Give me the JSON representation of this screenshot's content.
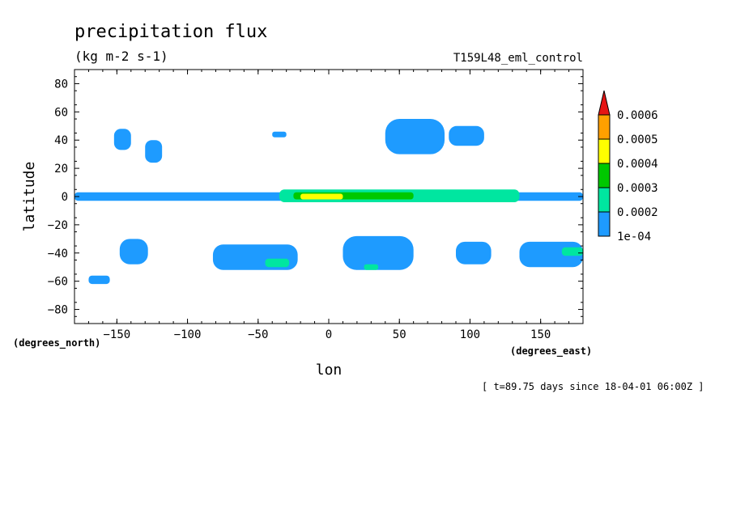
{
  "chart_data": {
    "type": "heatmap",
    "title": "precipitation flux",
    "subtitle": "(kg m-2 s-1)",
    "run_label": "T159L48_eml_control",
    "xlabel": "lon",
    "ylabel": "latitude",
    "x_units": "(degrees_east)",
    "y_units": "(degrees_north)",
    "time_note": "[ t=89.75 days since 18-04-01 06:00Z ]",
    "xlim": [
      -180,
      180
    ],
    "ylim": [
      -90,
      90
    ],
    "x_ticks": [
      -150,
      -100,
      -50,
      0,
      50,
      100,
      150
    ],
    "y_ticks": [
      80,
      60,
      40,
      20,
      0,
      -20,
      -40,
      -60,
      -80
    ],
    "grid": false,
    "colorbar": {
      "levels": [
        "1e-04",
        "0.0002",
        "0.0003",
        "0.0004",
        "0.0005",
        "0.0006"
      ],
      "colors": [
        "#1e9bff",
        "#00e6a0",
        "#00c800",
        "#ffff00",
        "#ffa000",
        "#e61414"
      ]
    },
    "fields": [
      {
        "lon": [
          -180,
          180
        ],
        "lat": [
          -3,
          3
        ],
        "level": 1
      },
      {
        "lon": [
          -35,
          135
        ],
        "lat": [
          -4,
          5
        ],
        "level": 2
      },
      {
        "lon": [
          -25,
          60
        ],
        "lat": [
          -2,
          3
        ],
        "level": 3
      },
      {
        "lon": [
          -20,
          10
        ],
        "lat": [
          -2,
          2
        ],
        "level": 4
      },
      {
        "lon": [
          -152,
          -140
        ],
        "lat": [
          33,
          48
        ],
        "level": 1
      },
      {
        "lon": [
          -130,
          -118
        ],
        "lat": [
          24,
          40
        ],
        "level": 1
      },
      {
        "lon": [
          -40,
          -30
        ],
        "lat": [
          42,
          46
        ],
        "level": 1
      },
      {
        "lon": [
          40,
          82
        ],
        "lat": [
          30,
          55
        ],
        "level": 1
      },
      {
        "lon": [
          85,
          110
        ],
        "lat": [
          36,
          50
        ],
        "level": 1
      },
      {
        "lon": [
          -170,
          -155
        ],
        "lat": [
          -62,
          -56
        ],
        "level": 1
      },
      {
        "lon": [
          -148,
          -128
        ],
        "lat": [
          -48,
          -30
        ],
        "level": 1
      },
      {
        "lon": [
          -82,
          -22
        ],
        "lat": [
          -52,
          -34
        ],
        "level": 1
      },
      {
        "lon": [
          -45,
          -28
        ],
        "lat": [
          -50,
          -44
        ],
        "level": 2
      },
      {
        "lon": [
          10,
          60
        ],
        "lat": [
          -52,
          -28
        ],
        "level": 1
      },
      {
        "lon": [
          25,
          35
        ],
        "lat": [
          -52,
          -48
        ],
        "level": 2
      },
      {
        "lon": [
          90,
          115
        ],
        "lat": [
          -48,
          -32
        ],
        "level": 1
      },
      {
        "lon": [
          135,
          180
        ],
        "lat": [
          -50,
          -32
        ],
        "level": 1
      },
      {
        "lon": [
          165,
          180
        ],
        "lat": [
          -42,
          -36
        ],
        "level": 2
      }
    ]
  }
}
